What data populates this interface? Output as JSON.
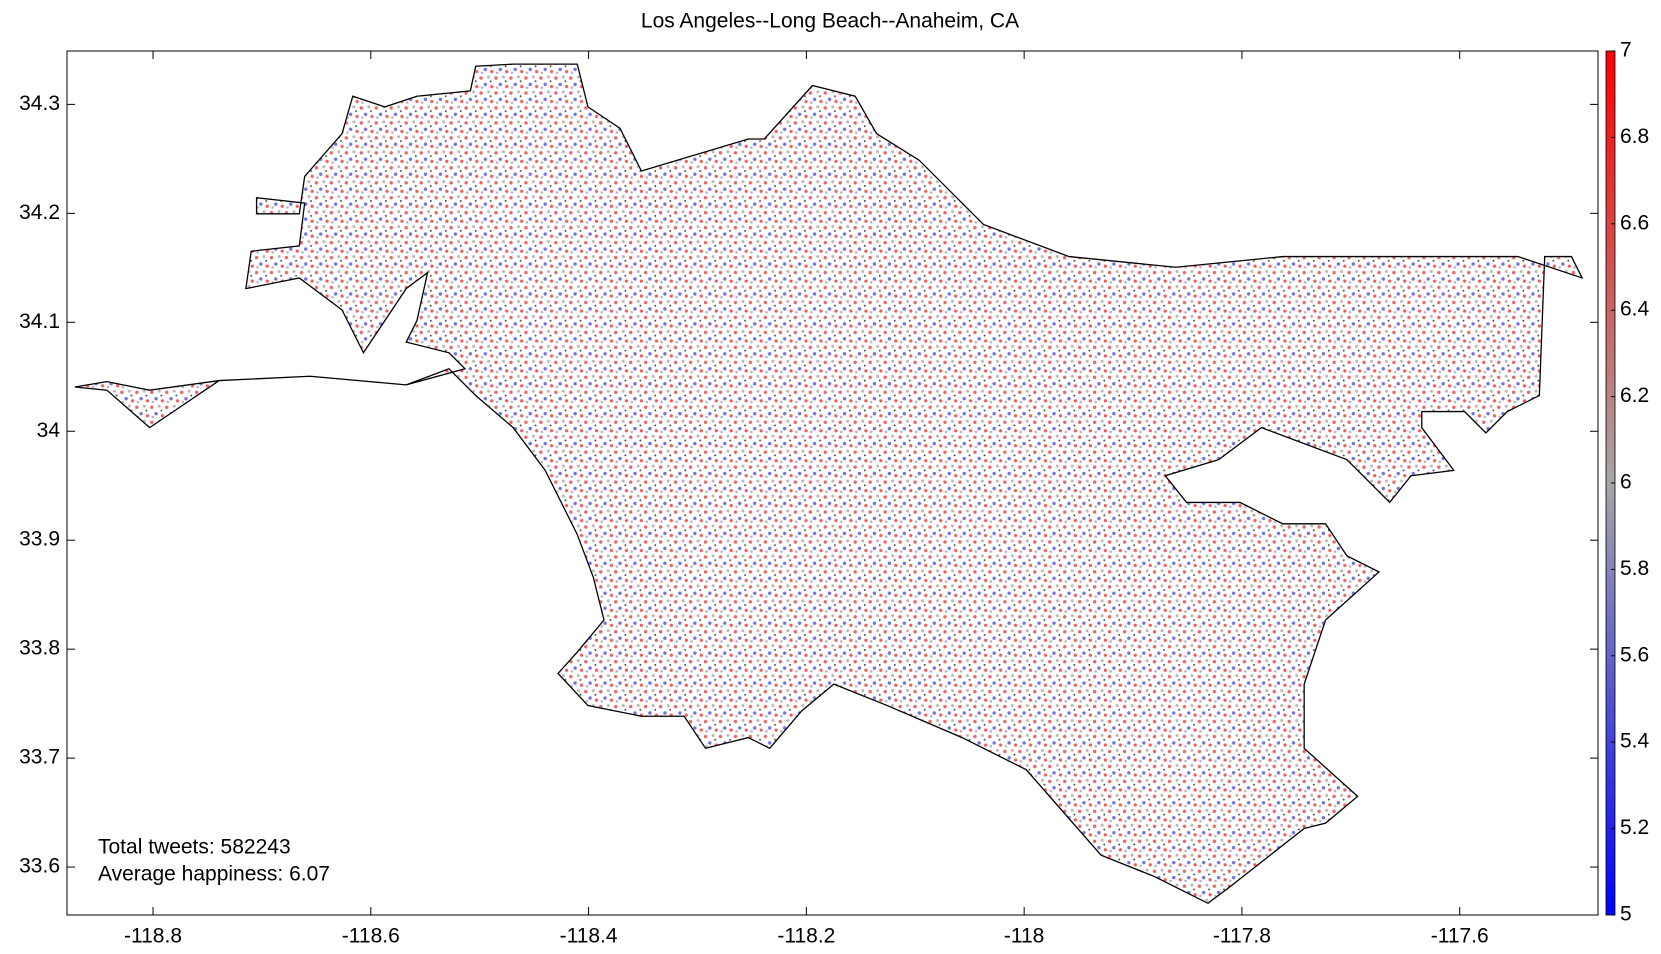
{
  "chart_data": {
    "type": "map-scatter",
    "title": "Los Angeles--Long Beach--Anaheim, CA",
    "xlim": [
      -118.879,
      -117.473
    ],
    "ylim": [
      33.556,
      34.349
    ],
    "xticks": [
      -118.8,
      -118.6,
      -118.4,
      -118.2,
      -118,
      -117.8,
      -117.6
    ],
    "yticks": [
      33.6,
      33.7,
      33.8,
      33.9,
      34,
      34.1,
      34.2,
      34.3
    ],
    "colorbar": {
      "lim": [
        5,
        7
      ],
      "ticks": [
        5,
        5.2,
        5.4,
        5.6,
        5.8,
        6,
        6.2,
        6.4,
        6.6,
        6.8,
        7
      ],
      "colors": [
        "#0000ff",
        "#a6a6a6",
        "#ff0000"
      ]
    },
    "annotations": [
      "Total tweets: 582243",
      "Average happiness: 6.07"
    ]
  }
}
